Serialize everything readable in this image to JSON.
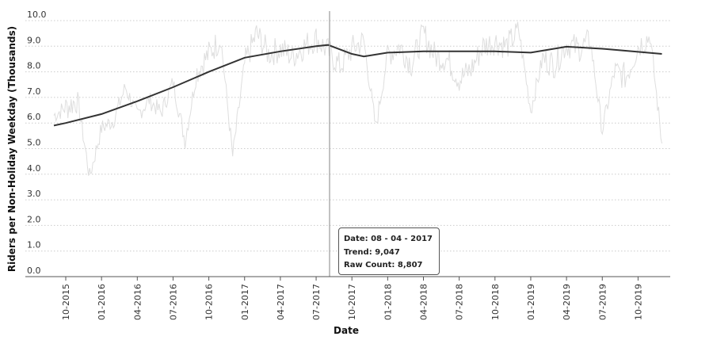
{
  "chart_data": {
    "type": "line",
    "title": "",
    "xlabel": "Date",
    "ylabel": "Riders per Non-Holiday Weekday (Thousands)",
    "ylim": [
      0,
      10
    ],
    "yticks": [
      "0.0",
      "1.0",
      "2.0",
      "3.0",
      "4.0",
      "5.0",
      "6.0",
      "7.0",
      "8.0",
      "9.0",
      "10.0"
    ],
    "xticks": [
      "10-2015",
      "01-2016",
      "04-2016",
      "07-2016",
      "10-2016",
      "01-2017",
      "04-2017",
      "07-2017",
      "10-2017",
      "01-2018",
      "04-2018",
      "07-2018",
      "10-2018",
      "01-2019",
      "04-2019",
      "07-2019",
      "10-2019"
    ],
    "grid": true,
    "legend": "none",
    "series": [
      {
        "name": "Trend",
        "color": "#333333",
        "x": [
          "09-2015",
          "10-2015",
          "01-2016",
          "04-2016",
          "07-2016",
          "10-2016",
          "01-2017",
          "04-2017",
          "07-2017",
          "08-2017",
          "10-2017",
          "11-2017",
          "01-2018",
          "04-2018",
          "07-2018",
          "10-2018",
          "01-2019",
          "04-2019",
          "07-2019",
          "10-2019",
          "12-2019"
        ],
        "values": [
          5.9,
          6.0,
          6.35,
          6.85,
          7.4,
          8.0,
          8.55,
          8.8,
          9.0,
          9.05,
          8.7,
          8.6,
          8.75,
          8.8,
          8.8,
          8.8,
          8.75,
          8.98,
          8.9,
          8.78,
          8.7
        ]
      },
      {
        "name": "Raw Count",
        "color": "#dedede",
        "x": [
          "09-2015",
          "10-2015",
          "11-2015",
          "12-2015",
          "01-2016",
          "02-2016",
          "03-2016",
          "04-2016",
          "05-2016",
          "06-2016",
          "07-2016",
          "08-2016",
          "09-2016",
          "10-2016",
          "11-2016",
          "12-2016",
          "01-2017",
          "02-2017",
          "03-2017",
          "04-2017",
          "05-2017",
          "06-2017",
          "07-2017",
          "08-2017",
          "09-2017",
          "10-2017",
          "11-2017",
          "12-2017",
          "01-2018",
          "02-2018",
          "03-2018",
          "04-2018",
          "05-2018",
          "06-2018",
          "07-2018",
          "08-2018",
          "09-2018",
          "10-2018",
          "11-2018",
          "12-2018",
          "01-2019",
          "02-2019",
          "03-2019",
          "04-2019",
          "05-2019",
          "06-2019",
          "07-2019",
          "08-2019",
          "09-2019",
          "10-2019",
          "11-2019",
          "12-2019"
        ],
        "values": [
          6.3,
          6.6,
          6.9,
          3.9,
          5.8,
          6.1,
          7.4,
          6.3,
          6.9,
          6.4,
          7.6,
          5.3,
          8.0,
          8.7,
          9.3,
          4.7,
          8.3,
          9.5,
          8.7,
          8.9,
          8.6,
          9.0,
          9.3,
          8.8,
          8.2,
          8.9,
          9.2,
          5.8,
          8.7,
          9.0,
          8.3,
          9.5,
          8.6,
          8.5,
          7.7,
          8.1,
          9.0,
          9.2,
          9.0,
          9.6,
          6.5,
          8.5,
          8.3,
          9.1,
          8.9,
          9.2,
          5.7,
          8.0,
          7.8,
          9.0,
          9.4,
          5.2
        ]
      }
    ],
    "hover": {
      "x": "08-04-2017",
      "trend": 9047,
      "raw_count": 8807
    }
  },
  "tooltip": {
    "date_line": "Date: 08 - 04 - 2017",
    "trend_line": "Trend: 9,047",
    "raw_line": "Raw Count: 8,807"
  }
}
